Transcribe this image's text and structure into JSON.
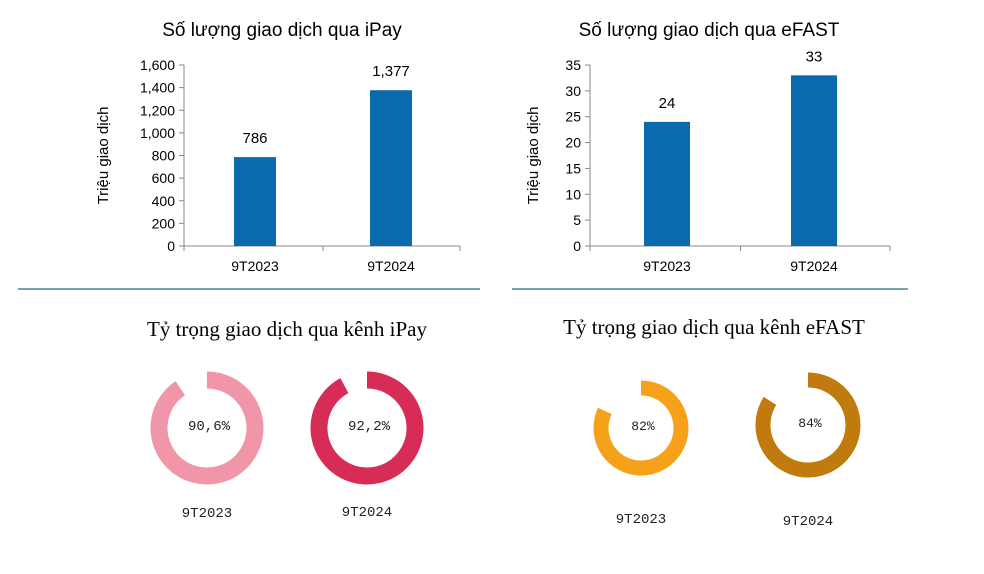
{
  "chart_data": [
    {
      "type": "bar",
      "title": "Số lượng giao dịch qua iPay",
      "ylabel": "Triệu giao dịch",
      "xlabel": "",
      "categories": [
        "9T2023",
        "9T2024"
      ],
      "values": [
        786,
        1377
      ],
      "value_labels": [
        "786",
        "1,377"
      ],
      "ylim": [
        0,
        1600
      ],
      "yticks": [
        0,
        200,
        400,
        600,
        800,
        1000,
        1200,
        1400,
        1600
      ],
      "ytick_labels": [
        "0",
        "200",
        "400",
        "600",
        "800",
        "1,000",
        "1,200",
        "1,400",
        "1,600"
      ],
      "grid": false,
      "color": "#0a6aad"
    },
    {
      "type": "bar",
      "title": "Số lượng giao dịch qua eFAST",
      "ylabel": "Triệu giao dịch",
      "xlabel": "",
      "categories": [
        "9T2023",
        "9T2024"
      ],
      "values": [
        24,
        33
      ],
      "value_labels": [
        "24",
        "33"
      ],
      "ylim": [
        0,
        35
      ],
      "yticks": [
        0,
        5,
        10,
        15,
        20,
        25,
        30,
        35
      ],
      "ytick_labels": [
        "0",
        "5",
        "10",
        "15",
        "20",
        "25",
        "30",
        "35"
      ],
      "grid": false,
      "color": "#0a6aad"
    },
    {
      "type": "pie",
      "title": "Tỷ trọng giao dịch qua kênh iPay",
      "categories": [
        "9T2023",
        "9T2024"
      ],
      "values": [
        90.6,
        92.2
      ],
      "value_labels": [
        "90,6%",
        "92,2%"
      ],
      "colors": [
        "#f196a8",
        "#d62c55"
      ]
    },
    {
      "type": "pie",
      "title": "Tỷ trọng giao dịch qua kênh eFAST",
      "categories": [
        "9T2023",
        "9T2024"
      ],
      "values": [
        82,
        84
      ],
      "value_labels": [
        "82%",
        "84%"
      ],
      "colors": [
        "#f6a11a",
        "#c07a0e"
      ]
    }
  ],
  "divider_color": "#1f6f78"
}
